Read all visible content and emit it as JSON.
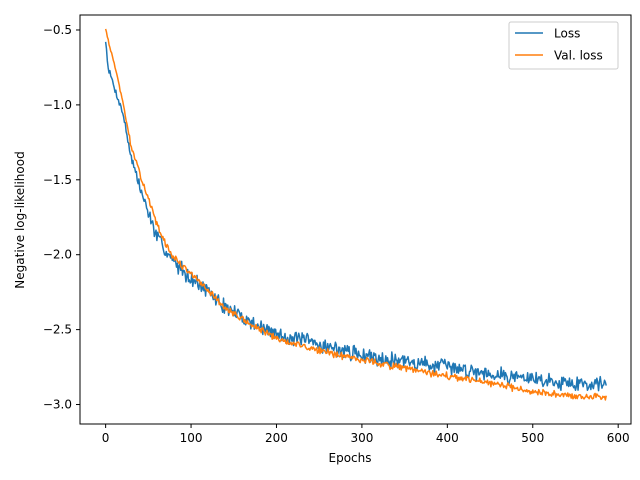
{
  "chart_data": {
    "type": "line",
    "title": "",
    "xlabel": "Epochs",
    "ylabel": "Negative log-likelihood",
    "xlim": [
      -30,
      615
    ],
    "ylim": [
      -3.13,
      -0.4
    ],
    "xticks": [
      0,
      100,
      200,
      300,
      400,
      500,
      600
    ],
    "yticks": [
      -3.0,
      -2.5,
      -2.0,
      -1.5,
      -1.0,
      -0.5
    ],
    "ytick_labels": [
      "−3.0",
      "−2.5",
      "−2.0",
      "−1.5",
      "−1.0",
      "−0.5"
    ],
    "legend_position": "top-right",
    "grid": false,
    "n_epochs": 586,
    "series": [
      {
        "name": "Loss",
        "color": "#1f77b4",
        "noise": 0.045,
        "seed": 7,
        "key_points": [
          [
            0,
            -0.57
          ],
          [
            3,
            -0.75
          ],
          [
            10,
            -0.88
          ],
          [
            20,
            -1.05
          ],
          [
            30,
            -1.35
          ],
          [
            40,
            -1.55
          ],
          [
            50,
            -1.72
          ],
          [
            60,
            -1.88
          ],
          [
            70,
            -1.97
          ],
          [
            80,
            -2.05
          ],
          [
            100,
            -2.15
          ],
          [
            120,
            -2.25
          ],
          [
            140,
            -2.35
          ],
          [
            160,
            -2.42
          ],
          [
            180,
            -2.48
          ],
          [
            200,
            -2.53
          ],
          [
            250,
            -2.6
          ],
          [
            300,
            -2.67
          ],
          [
            350,
            -2.71
          ],
          [
            400,
            -2.75
          ],
          [
            450,
            -2.79
          ],
          [
            500,
            -2.83
          ],
          [
            550,
            -2.86
          ],
          [
            586,
            -2.86
          ]
        ]
      },
      {
        "name": "Val. loss",
        "color": "#ff7f0e",
        "noise": 0.02,
        "seed": 13,
        "key_points": [
          [
            0,
            -0.49
          ],
          [
            5,
            -0.62
          ],
          [
            10,
            -0.72
          ],
          [
            20,
            -0.98
          ],
          [
            30,
            -1.28
          ],
          [
            40,
            -1.46
          ],
          [
            50,
            -1.62
          ],
          [
            60,
            -1.8
          ],
          [
            70,
            -1.93
          ],
          [
            80,
            -2.02
          ],
          [
            100,
            -2.13
          ],
          [
            120,
            -2.24
          ],
          [
            140,
            -2.36
          ],
          [
            160,
            -2.43
          ],
          [
            180,
            -2.5
          ],
          [
            200,
            -2.56
          ],
          [
            250,
            -2.64
          ],
          [
            300,
            -2.7
          ],
          [
            350,
            -2.76
          ],
          [
            400,
            -2.81
          ],
          [
            450,
            -2.86
          ],
          [
            500,
            -2.91
          ],
          [
            550,
            -2.95
          ],
          [
            586,
            -2.95
          ]
        ]
      }
    ]
  }
}
